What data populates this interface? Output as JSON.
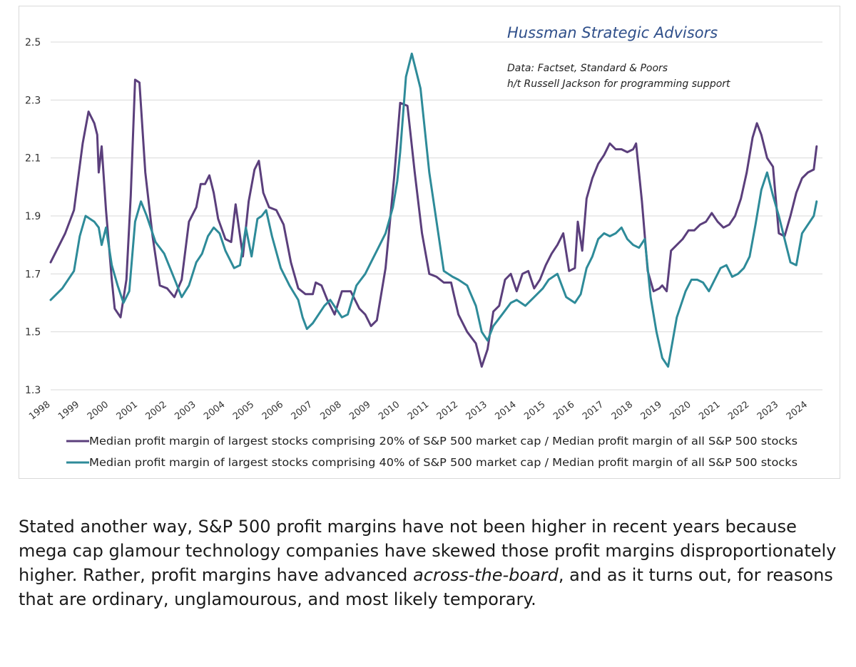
{
  "chart_data": {
    "type": "line",
    "title": "Hussman Strategic Advisors",
    "notes": [
      "Data: Factset, Standard & Poors",
      "h/t Russell Jackson for programming support"
    ],
    "ylim": [
      1.3,
      2.5
    ],
    "yticks": [
      "1.3",
      "1.5",
      "1.7",
      "1.9",
      "2.1",
      "2.3",
      "2.5"
    ],
    "xlim": [
      1998,
      2024.5
    ],
    "xticks": [
      "1998",
      "1999",
      "2000",
      "2001",
      "2002",
      "2003",
      "2004",
      "2005",
      "2006",
      "2007",
      "2008",
      "2009",
      "2010",
      "2011",
      "2012",
      "2013",
      "2014",
      "2015",
      "2016",
      "2017",
      "2018",
      "2019",
      "2020",
      "2021",
      "2022",
      "2023",
      "2024"
    ],
    "grid": "horizontal",
    "legend_position": "bottom",
    "series": [
      {
        "name": "Median profit margin of largest stocks comprising 20% of S&P 500 market cap / Median profit margin of all S&P 500 stocks",
        "color": "#5b3f7c",
        "x": [
          1998.0,
          1998.5,
          1998.8,
          1999.1,
          1999.3,
          1999.5,
          1999.6,
          1999.65,
          1999.75,
          1999.9,
          2000.1,
          2000.2,
          2000.4,
          2000.6,
          2000.75,
          2000.9,
          2001.05,
          2001.25,
          2001.5,
          2001.75,
          2002.0,
          2002.25,
          2002.5,
          2002.75,
          2003.0,
          2003.15,
          2003.3,
          2003.45,
          2003.6,
          2003.75,
          2004.0,
          2004.2,
          2004.35,
          2004.6,
          2004.8,
          2005.0,
          2005.15,
          2005.3,
          2005.5,
          2005.75,
          2006.0,
          2006.25,
          2006.5,
          2006.75,
          2007.0,
          2007.1,
          2007.3,
          2007.5,
          2007.75,
          2008.0,
          2008.3,
          2008.6,
          2008.8,
          2009.0,
          2009.2,
          2009.5,
          2009.8,
          2010.0,
          2010.25,
          2010.5,
          2010.75,
          2011.0,
          2011.25,
          2011.5,
          2011.75,
          2012.0,
          2012.3,
          2012.6,
          2012.8,
          2013.0,
          2013.2,
          2013.4,
          2013.6,
          2013.8,
          2014.0,
          2014.2,
          2014.4,
          2014.6,
          2014.8,
          2015.0,
          2015.2,
          2015.4,
          2015.6,
          2015.8,
          2016.0,
          2016.1,
          2016.25,
          2016.4,
          2016.6,
          2016.8,
          2017.0,
          2017.2,
          2017.4,
          2017.6,
          2017.8,
          2018.0,
          2018.1,
          2018.3,
          2018.5,
          2018.7,
          2018.9,
          2019.0,
          2019.15,
          2019.3,
          2019.5,
          2019.7,
          2019.9,
          2020.1,
          2020.3,
          2020.5,
          2020.7,
          2020.9,
          2021.1,
          2021.3,
          2021.5,
          2021.7,
          2021.9,
          2022.1,
          2022.25,
          2022.4,
          2022.6,
          2022.8,
          2023.0,
          2023.2,
          2023.4,
          2023.6,
          2023.8,
          2024.0,
          2024.2,
          2024.3
        ],
        "values": [
          1.74,
          1.84,
          1.92,
          2.15,
          2.26,
          2.22,
          2.18,
          2.05,
          2.14,
          1.92,
          1.68,
          1.58,
          1.55,
          1.68,
          1.97,
          2.37,
          2.36,
          2.05,
          1.83,
          1.66,
          1.65,
          1.62,
          1.68,
          1.88,
          1.93,
          2.01,
          2.01,
          2.04,
          1.98,
          1.89,
          1.82,
          1.81,
          1.94,
          1.76,
          1.95,
          2.06,
          2.09,
          1.98,
          1.93,
          1.92,
          1.87,
          1.74,
          1.65,
          1.63,
          1.63,
          1.67,
          1.66,
          1.61,
          1.56,
          1.64,
          1.64,
          1.58,
          1.56,
          1.52,
          1.54,
          1.72,
          2.04,
          2.29,
          2.28,
          2.05,
          1.84,
          1.7,
          1.69,
          1.67,
          1.67,
          1.56,
          1.5,
          1.46,
          1.38,
          1.44,
          1.57,
          1.59,
          1.68,
          1.7,
          1.64,
          1.7,
          1.71,
          1.65,
          1.68,
          1.73,
          1.77,
          1.8,
          1.84,
          1.71,
          1.72,
          1.88,
          1.78,
          1.96,
          2.03,
          2.08,
          2.11,
          2.15,
          2.13,
          2.13,
          2.12,
          2.13,
          2.15,
          1.95,
          1.71,
          1.64,
          1.65,
          1.66,
          1.64,
          1.78,
          1.8,
          1.82,
          1.85,
          1.85,
          1.87,
          1.88,
          1.91,
          1.88,
          1.86,
          1.87,
          1.9,
          1.96,
          2.05,
          2.17,
          2.22,
          2.18,
          2.1,
          2.07,
          1.84,
          1.83,
          1.9,
          1.98,
          2.03,
          2.05,
          2.06,
          2.14
        ]
      },
      {
        "name": "Median profit margin of largest stocks comprising 40% of S&P 500 market cap / Median profit margin of all S&P 500 stocks",
        "color": "#2e8b99",
        "x": [
          1998.0,
          1998.4,
          1998.8,
          1999.0,
          1999.2,
          1999.5,
          1999.65,
          1999.75,
          1999.9,
          2000.1,
          2000.3,
          2000.5,
          2000.7,
          2000.9,
          2001.1,
          2001.3,
          2001.6,
          2001.9,
          2002.1,
          2002.3,
          2002.5,
          2002.75,
          2003.0,
          2003.2,
          2003.4,
          2003.6,
          2003.8,
          2004.0,
          2004.3,
          2004.5,
          2004.7,
          2004.9,
          2005.1,
          2005.25,
          2005.4,
          2005.6,
          2005.9,
          2006.2,
          2006.5,
          2006.65,
          2006.8,
          2007.0,
          2007.2,
          2007.4,
          2007.6,
          2007.8,
          2008.0,
          2008.2,
          2008.5,
          2008.8,
          2009.0,
          2009.2,
          2009.5,
          2009.75,
          2009.9,
          2010.0,
          2010.2,
          2010.4,
          2010.7,
          2011.0,
          2011.25,
          2011.5,
          2011.8,
          2012.0,
          2012.3,
          2012.6,
          2012.8,
          2013.0,
          2013.2,
          2013.5,
          2013.8,
          2014.0,
          2014.3,
          2014.6,
          2014.9,
          2015.1,
          2015.4,
          2015.7,
          2016.0,
          2016.2,
          2016.4,
          2016.6,
          2016.8,
          2017.0,
          2017.2,
          2017.4,
          2017.6,
          2017.8,
          2018.0,
          2018.2,
          2018.4,
          2018.6,
          2018.8,
          2019.0,
          2019.2,
          2019.5,
          2019.8,
          2020.0,
          2020.2,
          2020.4,
          2020.6,
          2020.8,
          2021.0,
          2021.2,
          2021.4,
          2021.6,
          2021.8,
          2022.0,
          2022.2,
          2022.4,
          2022.6,
          2022.8,
          2023.0,
          2023.2,
          2023.4,
          2023.6,
          2023.8,
          2024.0,
          2024.2,
          2024.3
        ],
        "values": [
          1.61,
          1.65,
          1.71,
          1.83,
          1.9,
          1.88,
          1.86,
          1.8,
          1.86,
          1.73,
          1.66,
          1.6,
          1.64,
          1.88,
          1.95,
          1.9,
          1.81,
          1.77,
          1.72,
          1.67,
          1.62,
          1.66,
          1.74,
          1.77,
          1.83,
          1.86,
          1.84,
          1.78,
          1.72,
          1.73,
          1.86,
          1.76,
          1.89,
          1.9,
          1.92,
          1.83,
          1.72,
          1.66,
          1.61,
          1.55,
          1.51,
          1.53,
          1.56,
          1.59,
          1.61,
          1.58,
          1.55,
          1.56,
          1.66,
          1.7,
          1.74,
          1.78,
          1.84,
          1.93,
          2.02,
          2.12,
          2.38,
          2.46,
          2.34,
          2.05,
          1.88,
          1.71,
          1.69,
          1.68,
          1.66,
          1.59,
          1.5,
          1.47,
          1.52,
          1.56,
          1.6,
          1.61,
          1.59,
          1.62,
          1.65,
          1.68,
          1.7,
          1.62,
          1.6,
          1.63,
          1.72,
          1.76,
          1.82,
          1.84,
          1.83,
          1.84,
          1.86,
          1.82,
          1.8,
          1.79,
          1.82,
          1.62,
          1.5,
          1.41,
          1.38,
          1.55,
          1.64,
          1.68,
          1.68,
          1.67,
          1.64,
          1.68,
          1.72,
          1.73,
          1.69,
          1.7,
          1.72,
          1.76,
          1.87,
          1.99,
          2.05,
          1.97,
          1.9,
          1.82,
          1.74,
          1.73,
          1.84,
          1.87,
          1.9,
          1.95
        ]
      }
    ]
  },
  "caption": {
    "before": "Stated another way, S&P 500 profit margins have not been higher in recent years because mega cap glamour technology companies have skewed those profit margins disproportionately higher. Rather, profit margins have advanced ",
    "emphasis": "across-the-board",
    "after": ", and as it turns out, for reasons that are ordinary, unglamourous, and most likely temporary."
  }
}
